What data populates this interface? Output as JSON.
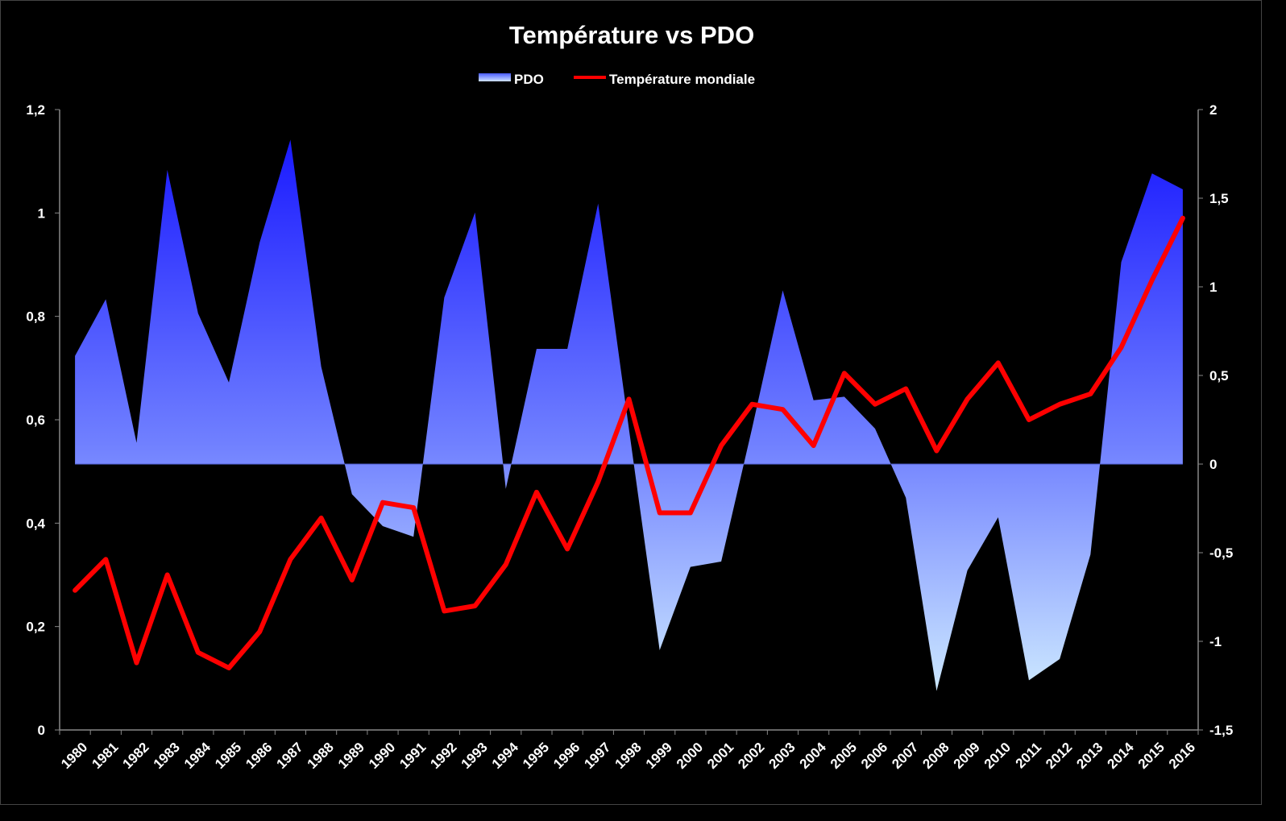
{
  "chart_data": {
    "type": "area+line",
    "title": "Température vs PDO",
    "legend_position": "top",
    "categories": [
      "1980",
      "1981",
      "1982",
      "1983",
      "1984",
      "1985",
      "1986",
      "1987",
      "1988",
      "1989",
      "1990",
      "1991",
      "1992",
      "1993",
      "1994",
      "1995",
      "1996",
      "1997",
      "1998",
      "1999",
      "2000",
      "2001",
      "2002",
      "2003",
      "2004",
      "2005",
      "2006",
      "2007",
      "2008",
      "2009",
      "2010",
      "2011",
      "2012",
      "2013",
      "2014",
      "2015",
      "2016"
    ],
    "series": [
      {
        "name": "PDO",
        "type": "area",
        "axis": "right",
        "color_top": "#1a1aff",
        "color_bottom": "#cce8ff",
        "values": [
          0.61,
          0.93,
          0.12,
          1.66,
          0.85,
          0.46,
          1.25,
          1.83,
          0.55,
          -0.17,
          -0.35,
          -0.41,
          0.94,
          1.42,
          -0.14,
          0.65,
          0.65,
          1.47,
          0.2,
          -1.05,
          -0.58,
          -0.55,
          0.2,
          0.98,
          0.36,
          0.38,
          0.2,
          -0.19,
          -1.28,
          -0.6,
          -0.3,
          -1.22,
          -1.1,
          -0.51,
          1.14,
          1.64,
          1.55
        ]
      },
      {
        "name": "Température mondiale",
        "type": "line",
        "axis": "left",
        "color": "#ff0000",
        "values": [
          0.27,
          0.33,
          0.13,
          0.3,
          0.15,
          0.12,
          0.19,
          0.33,
          0.41,
          0.29,
          0.44,
          0.43,
          0.23,
          0.24,
          0.32,
          0.46,
          0.35,
          0.48,
          0.64,
          0.42,
          0.42,
          0.55,
          0.63,
          0.62,
          0.55,
          0.69,
          0.63,
          0.66,
          0.54,
          0.64,
          0.71,
          0.6,
          0.63,
          0.65,
          0.74,
          0.87,
          0.99
        ]
      }
    ],
    "y_left": {
      "min": 0,
      "max": 1.2,
      "ticks": [
        "0",
        "0,2",
        "0,4",
        "0,6",
        "0,8",
        "1",
        "1,2"
      ]
    },
    "y_right": {
      "min": -1.5,
      "max": 2,
      "ticks": [
        "-1,5",
        "-1",
        "-0,5",
        "0",
        "0,5",
        "1",
        "1,5",
        "2"
      ]
    },
    "grid": false
  }
}
